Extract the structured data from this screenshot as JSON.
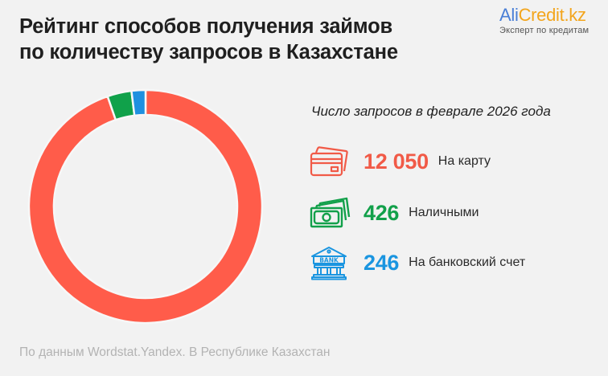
{
  "header": {
    "title_line1": "Рейтинг способов получения займов",
    "title_line2": "по количеству запросов в Казахстане"
  },
  "logo": {
    "brand_part1": "Ali",
    "brand_part2": "Credit.kz",
    "tagline": "Эксперт по кредитам",
    "colors": {
      "ali": "#4a7fd6",
      "credit": "#f3a51c"
    }
  },
  "legend": {
    "heading": "Число запросов в феврале 2026 года",
    "items": [
      {
        "value": "12 050",
        "label": "На карту",
        "icon": "credit-card-icon",
        "color": "#f15a47"
      },
      {
        "value": "426",
        "label": "Наличными",
        "icon": "cash-banknotes-icon",
        "color": "#12a04a"
      },
      {
        "value": "246",
        "label": "На банковский счет",
        "icon": "bank-building-icon",
        "color": "#1a95e0"
      }
    ]
  },
  "footer": {
    "source": "По данным Wordstat.Yandex. В Республике Казахстан"
  },
  "chart_data": {
    "type": "pie",
    "subtype": "donut",
    "title": "Рейтинг способов получения займов по количеству запросов в Казахстане",
    "subtitle": "Число запросов в феврале 2026 года",
    "categories": [
      "На карту",
      "Наличными",
      "На банковский счет"
    ],
    "values": [
      12050,
      426,
      246
    ],
    "colors": [
      "#ff5c4a",
      "#10a14a",
      "#1e90e0"
    ],
    "start_angle": "12 o'clock, clockwise",
    "legend_position": "right",
    "annotations": [
      "По данным Wordstat.Yandex. В Республике Казахстан"
    ]
  }
}
